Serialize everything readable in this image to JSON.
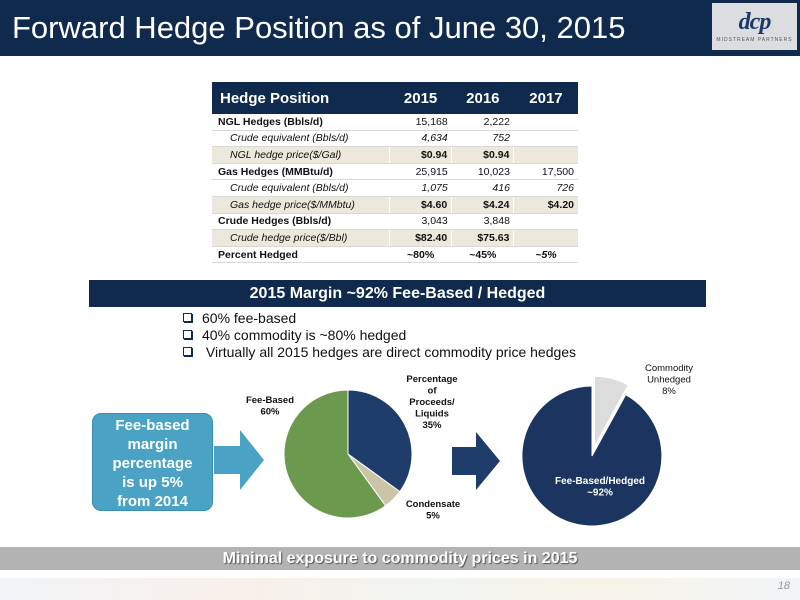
{
  "header": {
    "title": "Forward Hedge Position as of June 30, 2015",
    "logo_text": "dcp",
    "logo_sub": "MIDSTREAM PARTNERS"
  },
  "table": {
    "columns": [
      "Hedge Position",
      "2015",
      "2016",
      "2017"
    ],
    "rows": [
      {
        "label": "NGL Hedges (Bbls/d)",
        "v2015": "15,168",
        "v2016": "2,222",
        "v2017": ""
      },
      {
        "label": "Crude equivalent (Bbls/d)",
        "v2015": "4,634",
        "v2016": "752",
        "v2017": ""
      },
      {
        "label": "NGL hedge price($/Gal)",
        "v2015": "$0.94",
        "v2016": "$0.94",
        "v2017": ""
      },
      {
        "label": "Gas Hedges (MMBtu/d)",
        "v2015": "25,915",
        "v2016": "10,023",
        "v2017": "17,500"
      },
      {
        "label": "Crude equivalent (Bbls/d)",
        "v2015": "1,075",
        "v2016": "416",
        "v2017": "726"
      },
      {
        "label": "Gas hedge price($/MMbtu)",
        "v2015": "$4.60",
        "v2016": "$4.24",
        "v2017": "$4.20"
      },
      {
        "label": "Crude Hedges (Bbls/d)",
        "v2015": "3,043",
        "v2016": "3,848",
        "v2017": ""
      },
      {
        "label": "Crude hedge price($/Bbl)",
        "v2015": "$82.40",
        "v2016": "$75.63",
        "v2017": ""
      },
      {
        "label": "Percent Hedged",
        "v2015": "~80%",
        "v2016": "~45%",
        "v2017": "~5%"
      }
    ]
  },
  "banner": "2015 Margin ~92% Fee-Based / Hedged",
  "bullets": [
    "60% fee-based",
    "40% commodity is ~80% hedged",
    " Virtually all 2015 hedges are direct commodity price hedges"
  ],
  "callout": {
    "lines": [
      "Fee-based",
      "margin",
      "percentage",
      "is up 5%",
      "from 2014"
    ]
  },
  "chart_data": [
    {
      "type": "pie",
      "slices": [
        {
          "label_lines": [
            "Percentage",
            "of",
            "Proceeds/",
            "Liquids",
            "35%"
          ],
          "value": 35,
          "color": "#1f3d6b"
        },
        {
          "label_lines": [
            "Condensate",
            "5%"
          ],
          "value": 5,
          "color": "#cbc4a6"
        },
        {
          "label_lines": [
            "Fee-Based",
            "60%"
          ],
          "value": 60,
          "color": "#6b9a4f"
        }
      ]
    },
    {
      "type": "pie",
      "slices": [
        {
          "label_lines": [
            "Commodity",
            "Unhedged",
            "8%"
          ],
          "value": 8,
          "color": "#dcdcdc"
        },
        {
          "label_lines": [
            "Fee-Based/Hedged",
            "~92%"
          ],
          "value": 92,
          "color": "#1b3560"
        }
      ]
    }
  ],
  "footer": {
    "text": "Minimal exposure to commodity prices in 2015",
    "page_number": "18"
  }
}
